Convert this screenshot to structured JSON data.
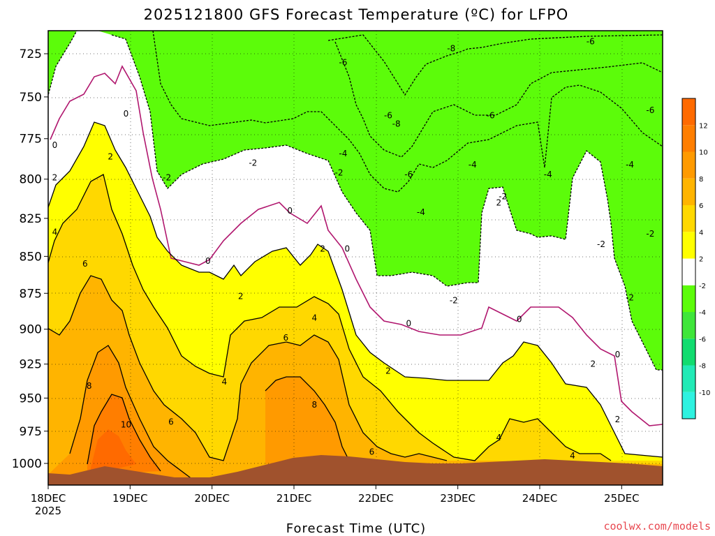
{
  "chart_data": {
    "type": "area",
    "title": "2025121800 GFS Forecast Temperature (ºC) for LFPO",
    "xlabel": "Forecast Time (UTC)",
    "ylabel": "",
    "credit": "coolwx.com/models",
    "x_start": "2025-12-18T00",
    "x_end": "2025-12-25T12",
    "x_ticks": [
      {
        "label": "18DEC",
        "sub": "2025",
        "day": 0
      },
      {
        "label": "19DEC",
        "day": 1
      },
      {
        "label": "20DEC",
        "day": 2
      },
      {
        "label": "21DEC",
        "day": 3
      },
      {
        "label": "22DEC",
        "day": 4
      },
      {
        "label": "23DEC",
        "day": 5
      },
      {
        "label": "24DEC",
        "day": 6
      },
      {
        "label": "25DEC",
        "day": 7
      }
    ],
    "y_axis": {
      "units": "hPa",
      "inverted": true,
      "ylim": [
        1013,
        712
      ],
      "ticks": [
        725,
        750,
        775,
        800,
        825,
        850,
        875,
        900,
        925,
        950,
        975,
        1000
      ]
    },
    "grid": true,
    "colorbar": {
      "levels": [
        -12,
        -10,
        -8,
        -6,
        -4,
        -2,
        2,
        4,
        6,
        8,
        10,
        12,
        14
      ],
      "tick_labels": [
        "-10",
        "-8",
        "-6",
        "-4",
        "-2",
        "2",
        "4",
        "6",
        "8",
        "10",
        "12"
      ],
      "colors": [
        "#2ef2e0",
        "#22eab6",
        "#11dc6f",
        "#3fe63a",
        "#5cfc0a",
        "#ffffff",
        "#ffff00",
        "#ffd800",
        "#ffb400",
        "#ff9a00",
        "#ff7e00",
        "#ff6a00"
      ]
    },
    "ground": {
      "color": "#a0522d",
      "surface_pressure": [
        1004,
        1001,
        1000,
        1004,
        1001,
        997,
        997,
        1001,
        1002,
        1002
      ]
    },
    "contour_labels": [
      {
        "text": "-6",
        "day": 3.6,
        "p": 730
      },
      {
        "text": "-8",
        "day": 4.92,
        "p": 722
      },
      {
        "text": "-6",
        "day": 6.62,
        "p": 718
      },
      {
        "text": "-8",
        "day": 4.25,
        "p": 766
      },
      {
        "text": "-6",
        "day": 4.15,
        "p": 761
      },
      {
        "text": "-6",
        "day": 5.4,
        "p": 761
      },
      {
        "text": "-6",
        "day": 7.35,
        "p": 758
      },
      {
        "text": "-4",
        "day": 3.6,
        "p": 784
      },
      {
        "text": "-4",
        "day": 5.18,
        "p": 791
      },
      {
        "text": "-6",
        "day": 4.4,
        "p": 797
      },
      {
        "text": "-4",
        "day": 6.1,
        "p": 797
      },
      {
        "text": "-4",
        "day": 7.1,
        "p": 791
      },
      {
        "text": "-4",
        "day": 4.55,
        "p": 821
      },
      {
        "text": "-2",
        "day": 2.5,
        "p": 790
      },
      {
        "text": "-2",
        "day": 3.55,
        "p": 796
      },
      {
        "text": "-2",
        "day": 1.45,
        "p": 799
      },
      {
        "text": "-2",
        "day": 5.55,
        "p": 811
      },
      {
        "text": "-2",
        "day": 6.75,
        "p": 842
      },
      {
        "text": "-2",
        "day": 7.35,
        "p": 835
      },
      {
        "text": "-2",
        "day": 4.95,
        "p": 880
      },
      {
        "text": "-2",
        "day": 7.1,
        "p": 878
      },
      {
        "text": "0",
        "day": 0.08,
        "p": 779
      },
      {
        "text": "0",
        "day": 0.95,
        "p": 760
      },
      {
        "text": "0",
        "day": 1.95,
        "p": 853
      },
      {
        "text": "0",
        "day": 2.95,
        "p": 820
      },
      {
        "text": "0",
        "day": 3.65,
        "p": 845
      },
      {
        "text": "0",
        "day": 4.4,
        "p": 896
      },
      {
        "text": "0",
        "day": 5.75,
        "p": 893
      },
      {
        "text": "0",
        "day": 6.95,
        "p": 918
      },
      {
        "text": "2",
        "day": 0.08,
        "p": 799
      },
      {
        "text": "2",
        "day": 0.76,
        "p": 786
      },
      {
        "text": "2",
        "day": 2.35,
        "p": 877
      },
      {
        "text": "2",
        "day": 3.35,
        "p": 845
      },
      {
        "text": "2",
        "day": 4.15,
        "p": 930
      },
      {
        "text": "2",
        "day": 5.5,
        "p": 815
      },
      {
        "text": "2",
        "day": 6.65,
        "p": 925
      },
      {
        "text": "2",
        "day": 6.95,
        "p": 966
      },
      {
        "text": "4",
        "day": 0.08,
        "p": 834
      },
      {
        "text": "4",
        "day": 2.15,
        "p": 938
      },
      {
        "text": "4",
        "day": 3.25,
        "p": 892
      },
      {
        "text": "4",
        "day": 5.5,
        "p": 980
      },
      {
        "text": "4",
        "day": 6.4,
        "p": 994
      },
      {
        "text": "6",
        "day": 0.45,
        "p": 855
      },
      {
        "text": "6",
        "day": 1.5,
        "p": 968
      },
      {
        "text": "6",
        "day": 2.9,
        "p": 906
      },
      {
        "text": "6",
        "day": 3.95,
        "p": 991
      },
      {
        "text": "8",
        "day": 0.5,
        "p": 941
      },
      {
        "text": "8",
        "day": 3.25,
        "p": 955
      },
      {
        "text": "10",
        "day": 0.95,
        "p": 970
      }
    ]
  }
}
